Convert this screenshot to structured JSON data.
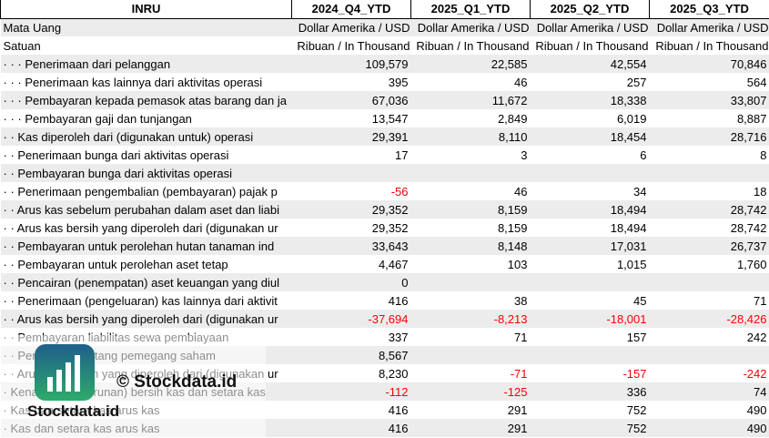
{
  "header": {
    "label": "INRU",
    "periods": [
      "2024_Q4_YTD",
      "2025_Q1_YTD",
      "2025_Q2_YTD",
      "2025_Q3_YTD"
    ]
  },
  "meta_rows": [
    {
      "label": "Mata Uang",
      "values": [
        "Dollar Amerika / USD",
        "Dollar Amerika / USD",
        "Dollar Amerika / USD",
        "Dollar Amerika / USD"
      ]
    },
    {
      "label": "Satuan",
      "values": [
        "Ribuan / In Thousand",
        "Ribuan / In Thousand",
        "Ribuan / In Thousand",
        "Ribuan / In Thousand"
      ]
    }
  ],
  "rows": [
    {
      "label": "· · · Penerimaan dari pelanggan",
      "values": [
        "109,579",
        "22,585",
        "42,554",
        "70,846"
      ]
    },
    {
      "label": "· · · Penerimaan kas lainnya dari aktivitas operasi",
      "values": [
        "395",
        "46",
        "257",
        "564"
      ]
    },
    {
      "label": "· · · Pembayaran kepada pemasok atas barang dan ja",
      "values": [
        "67,036",
        "11,672",
        "18,338",
        "33,807"
      ]
    },
    {
      "label": "· · · Pembayaran gaji dan tunjangan",
      "values": [
        "13,547",
        "2,849",
        "6,019",
        "8,887"
      ]
    },
    {
      "label": "· · Kas diperoleh dari (digunakan untuk) operasi",
      "values": [
        "29,391",
        "8,110",
        "18,454",
        "28,716"
      ]
    },
    {
      "label": "· · Penerimaan bunga dari aktivitas operasi",
      "values": [
        "17",
        "3",
        "6",
        "8"
      ]
    },
    {
      "label": "· · Pembayaran bunga dari aktivitas operasi",
      "values": [
        "",
        "",
        "",
        ""
      ]
    },
    {
      "label": "· · Penerimaan pengembalian (pembayaran) pajak p",
      "values": [
        "-56",
        "46",
        "34",
        "18"
      ]
    },
    {
      "label": "· · Arus kas sebelum perubahan dalam aset dan liabi",
      "values": [
        "29,352",
        "8,159",
        "18,494",
        "28,742"
      ]
    },
    {
      "label": "· · Arus kas bersih yang diperoleh dari (digunakan ur",
      "values": [
        "29,352",
        "8,159",
        "18,494",
        "28,742"
      ]
    },
    {
      "label": "· · Pembayaran untuk perolehan hutan tanaman ind",
      "values": [
        "33,643",
        "8,148",
        "17,031",
        "26,737"
      ]
    },
    {
      "label": "· · Pembayaran untuk perolehan aset tetap",
      "values": [
        "4,467",
        "103",
        "1,015",
        "1,760"
      ]
    },
    {
      "label": "· · Pencairan (penempatan) aset keuangan yang diul",
      "values": [
        "0",
        "",
        "",
        ""
      ]
    },
    {
      "label": "· · Penerimaan (pengeluaran) kas lainnya dari aktivit",
      "values": [
        "416",
        "38",
        "45",
        "71"
      ]
    },
    {
      "label": "· · Arus kas bersih yang diperoleh dari (digunakan ur",
      "values": [
        "-37,694",
        "-8,213",
        "-18,001",
        "-28,426"
      ]
    },
    {
      "label": "· · Pembayaran liabilitas sewa pembiayaan",
      "values": [
        "337",
        "71",
        "157",
        "242"
      ]
    },
    {
      "label": "· · Pembayaran utang pemegang saham",
      "values": [
        "8,567",
        "",
        "",
        ""
      ]
    },
    {
      "label": "· · Arus kas bersih yang diperoleh dari (digunakan ur",
      "values": [
        "8,230",
        "-71",
        "-157",
        "-242"
      ]
    },
    {
      "label": "· Kenaikan (penurunan) bersih kas dan setara kas",
      "values": [
        "-112",
        "-125",
        "336",
        "74"
      ]
    },
    {
      "label": "· Kas dan setara kas arus kas",
      "values": [
        "416",
        "291",
        "752",
        "490"
      ]
    },
    {
      "label": "· Kas dan setara kas arus kas",
      "values": [
        "416",
        "291",
        "752",
        "490"
      ]
    }
  ],
  "watermark": {
    "copyright": "© Stockdata.id",
    "brand": "Stockdata.id",
    "icon": "stockdata-logo-icon",
    "colors": {
      "logo_top": "#1f5f8b",
      "logo_bottom": "#2eaa6a"
    }
  },
  "colors": {
    "negative": "#ff0000",
    "stripe": "#ececec"
  }
}
